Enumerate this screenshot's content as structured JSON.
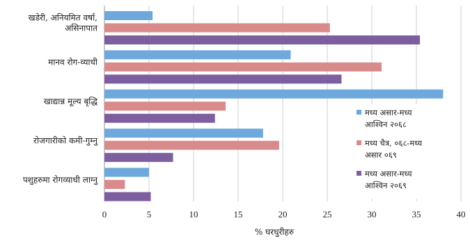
{
  "chart_data": {
    "type": "bar",
    "orientation": "horizontal",
    "categories": [
      [
        "खडेरी, अनियमित वर्षा,",
        "असिनापात"
      ],
      [
        "मानव रोग-व्याधी"
      ],
      [
        "खाद्यान्न मूल्य बृद्धि"
      ],
      [
        "रोजगारीको कमी-गुम्नु"
      ],
      [
        "पशुहरुमा रोगव्याधी लाग्नु"
      ]
    ],
    "series": [
      {
        "name": [
          "मध्य असार-मध्य",
          "आश्विन २०६८"
        ],
        "color": "#6fa8dc",
        "values": [
          5.4,
          20.9,
          38,
          17.8,
          5
        ]
      },
      {
        "name": [
          "मध्य चैत्र, ०६८-मध्य",
          "असार ०६९"
        ],
        "color": "#d98b8b",
        "values": [
          25.3,
          31.1,
          13.6,
          19.6,
          2.3
        ]
      },
      {
        "name": [
          "मध्य असार-मध्य",
          "आश्विन २०६९"
        ],
        "color": "#7d5fa0",
        "values": [
          35.4,
          26.6,
          12.4,
          7.7,
          5.2
        ]
      }
    ],
    "xlabel": "% घरधुरीहरु",
    "xlim": [
      0,
      40
    ],
    "xticks": [
      0,
      5,
      10,
      15,
      20,
      25,
      30,
      35,
      40
    ],
    "grid": true,
    "legend_position": "bottom-right"
  }
}
